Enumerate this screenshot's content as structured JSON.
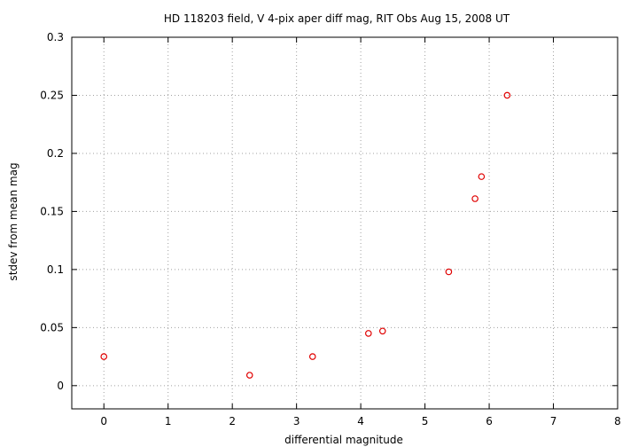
{
  "chart_data": {
    "type": "scatter",
    "title": "HD 118203 field, V 4-pix aper diff mag, RIT Obs Aug 15, 2008 UT",
    "xlabel": "differential magnitude",
    "ylabel": "stdev from mean mag",
    "xlim": [
      -0.5,
      8
    ],
    "ylim": [
      -0.02,
      0.3
    ],
    "xticks": [
      0,
      1,
      2,
      3,
      4,
      5,
      6,
      7,
      8
    ],
    "xtick_labels": [
      "0",
      "1",
      "2",
      "3",
      "4",
      "5",
      "6",
      "7",
      "8"
    ],
    "yticks": [
      0,
      0.05,
      0.1,
      0.15,
      0.2,
      0.25,
      0.3
    ],
    "ytick_labels": [
      "0",
      "0.05",
      "0.1",
      "0.15",
      "0.2",
      "0.25",
      "0.3"
    ],
    "grid": true,
    "marker": "circle-open",
    "color": "#e00000",
    "series": [
      {
        "x": [
          0.0,
          2.27,
          3.25,
          4.12,
          4.34,
          5.37,
          5.78,
          5.88,
          6.28
        ],
        "y": [
          0.025,
          0.009,
          0.025,
          0.045,
          0.047,
          0.098,
          0.161,
          0.18,
          0.25
        ]
      }
    ]
  }
}
